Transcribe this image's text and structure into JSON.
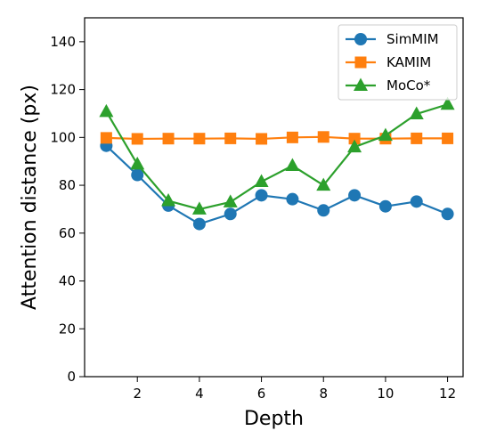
{
  "chart_data": {
    "type": "line",
    "title": "",
    "xlabel": "Depth",
    "ylabel": "Attention distance (px)",
    "xlim": [
      0.3,
      12.5
    ],
    "ylim": [
      0,
      150
    ],
    "xticks": [
      2,
      4,
      6,
      8,
      10,
      12
    ],
    "yticks": [
      0,
      20,
      40,
      60,
      80,
      100,
      120,
      140
    ],
    "grid": false,
    "legend_position": "top-right",
    "x": [
      1,
      2,
      3,
      4,
      5,
      6,
      7,
      8,
      9,
      10,
      11,
      12
    ],
    "series": [
      {
        "name": "SimMIM",
        "color": "#1f77b4",
        "marker": "circle",
        "values": [
          96.5,
          84.3,
          71.5,
          63.8,
          68.0,
          75.8,
          74.2,
          69.5,
          75.8,
          71.2,
          73.2,
          68.0
        ]
      },
      {
        "name": "KAMIM",
        "color": "#ff7f0e",
        "marker": "square",
        "values": [
          99.8,
          99.4,
          99.5,
          99.5,
          99.6,
          99.4,
          100.0,
          100.2,
          99.5,
          99.5,
          99.6,
          99.6
        ]
      },
      {
        "name": "MoCo*",
        "color": "#2ca02c",
        "marker": "triangle",
        "values": [
          110.8,
          88.8,
          73.5,
          70.0,
          73.0,
          81.5,
          88.2,
          80.0,
          96.0,
          100.8,
          109.8,
          113.8
        ]
      }
    ]
  }
}
